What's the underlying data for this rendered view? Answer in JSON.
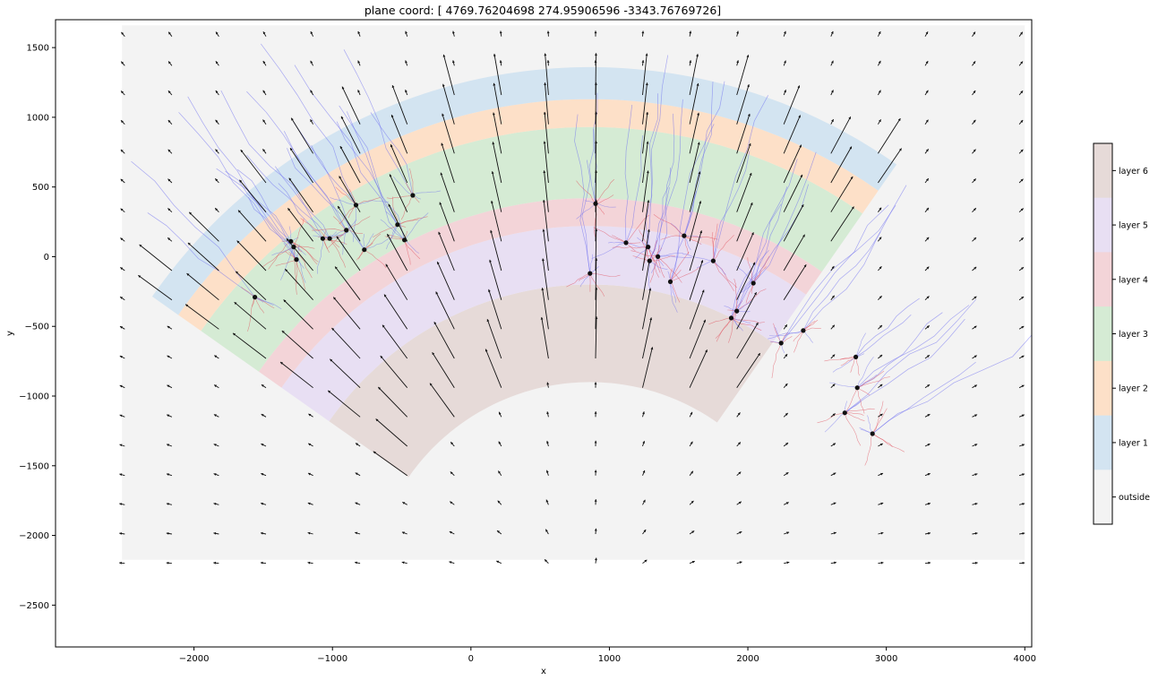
{
  "chart_data": {
    "type": "heatmap",
    "title": "plane coord: [ 4769.76204698   274.95906596 -3343.76769726]",
    "xlabel": "x",
    "ylabel": "y",
    "xlim": [
      -3000,
      4050
    ],
    "ylim": [
      -2800,
      1700
    ],
    "xticks": [
      -2000,
      -1000,
      0,
      1000,
      2000,
      3000,
      4000
    ],
    "yticks": [
      -2500,
      -2000,
      -1500,
      -1000,
      -500,
      0,
      500,
      1000,
      1500
    ],
    "grid": false,
    "outside_region": {
      "x": [
        -2520,
        4000
      ],
      "y": [
        -2175,
        1660
      ]
    },
    "arc": {
      "center": [
        860,
        -2500
      ],
      "theta_deg": [
        55,
        145
      ]
    },
    "layers": [
      {
        "name": "layer 6",
        "color": "#e6dad8",
        "r_inner": 1600,
        "r_outer": 2300
      },
      {
        "name": "layer 5",
        "color": "#e8dff3",
        "r_inner": 2300,
        "r_outer": 2720
      },
      {
        "name": "layer 4",
        "color": "#f3d4d8",
        "r_inner": 2720,
        "r_outer": 2920
      },
      {
        "name": "layer 3",
        "color": "#d5ebd4",
        "r_inner": 2920,
        "r_outer": 3430
      },
      {
        "name": "layer 2",
        "color": "#fde0c8",
        "r_inner": 3430,
        "r_outer": 3630
      },
      {
        "name": "layer 1",
        "color": "#d3e4f1",
        "r_inner": 3630,
        "r_outer": 3860
      },
      {
        "name": "outside",
        "color": "#f3f3f3"
      }
    ],
    "colorbar_labels": [
      "layer 6",
      "layer 5",
      "layer 4",
      "layer 3",
      "layer 2",
      "layer 1",
      "outside"
    ],
    "soma_points": [
      {
        "x": -1560,
        "y": -290
      },
      {
        "x": -1300,
        "y": 110
      },
      {
        "x": -1280,
        "y": 70
      },
      {
        "x": -1260,
        "y": -20
      },
      {
        "x": -1070,
        "y": 130
      },
      {
        "x": -1020,
        "y": 130
      },
      {
        "x": -900,
        "y": 190
      },
      {
        "x": -830,
        "y": 370
      },
      {
        "x": -770,
        "y": 50
      },
      {
        "x": -530,
        "y": 230
      },
      {
        "x": -480,
        "y": 120
      },
      {
        "x": -420,
        "y": 440
      },
      {
        "x": 860,
        "y": -120
      },
      {
        "x": 900,
        "y": 380
      },
      {
        "x": 1120,
        "y": 100
      },
      {
        "x": 1280,
        "y": 70
      },
      {
        "x": 1290,
        "y": -30
      },
      {
        "x": 1350,
        "y": 0
      },
      {
        "x": 1440,
        "y": -180
      },
      {
        "x": 1540,
        "y": 150
      },
      {
        "x": 1750,
        "y": -30
      },
      {
        "x": 1880,
        "y": -440
      },
      {
        "x": 1920,
        "y": -390
      },
      {
        "x": 2040,
        "y": -190
      },
      {
        "x": 2240,
        "y": -620
      },
      {
        "x": 2400,
        "y": -530
      },
      {
        "x": 2700,
        "y": -1120
      },
      {
        "x": 2780,
        "y": -720
      },
      {
        "x": 2790,
        "y": -940
      },
      {
        "x": 2900,
        "y": -1270
      }
    ],
    "vector_field": {
      "x_start": -2500,
      "x_step": 340,
      "nx": 20,
      "y_start": -2200,
      "y_step": 210,
      "ny": 19,
      "inside_len": 300,
      "outside_len": 40
    }
  }
}
